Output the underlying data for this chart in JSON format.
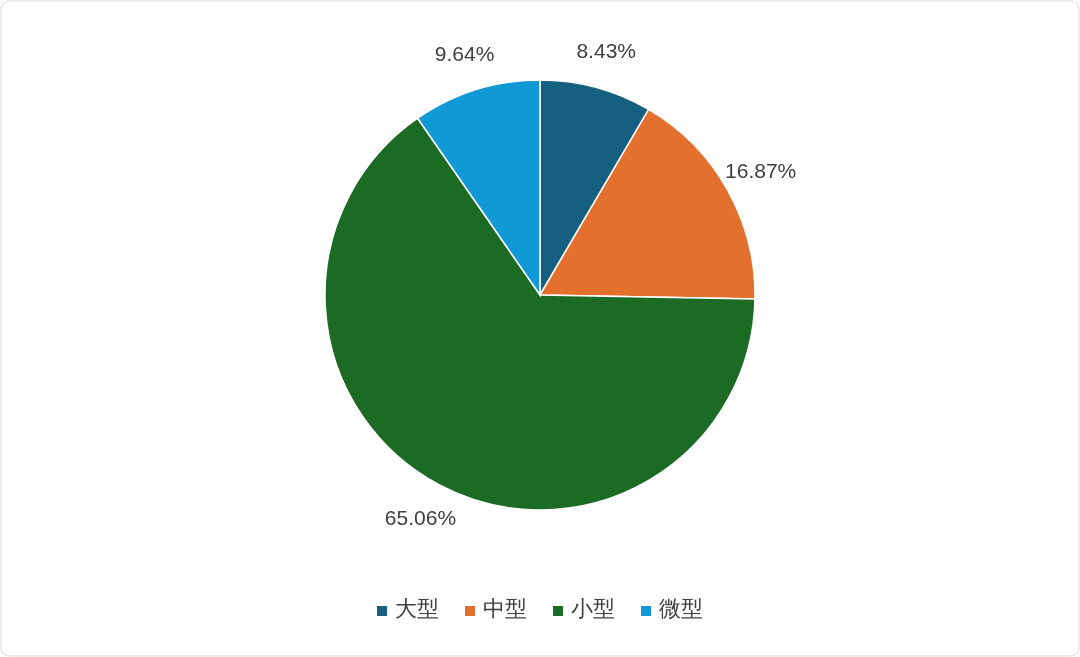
{
  "chart_data": {
    "type": "pie",
    "categories": [
      "大型",
      "中型",
      "小型",
      "微型"
    ],
    "values": [
      8.43,
      16.87,
      65.06,
      9.64
    ],
    "colors": [
      "#155f80",
      "#e4702e",
      "#1b6b24",
      "#1199d5"
    ],
    "value_labels": [
      "8.43%",
      "16.87%",
      "65.06%",
      "9.64%"
    ],
    "legend": "bottom"
  }
}
